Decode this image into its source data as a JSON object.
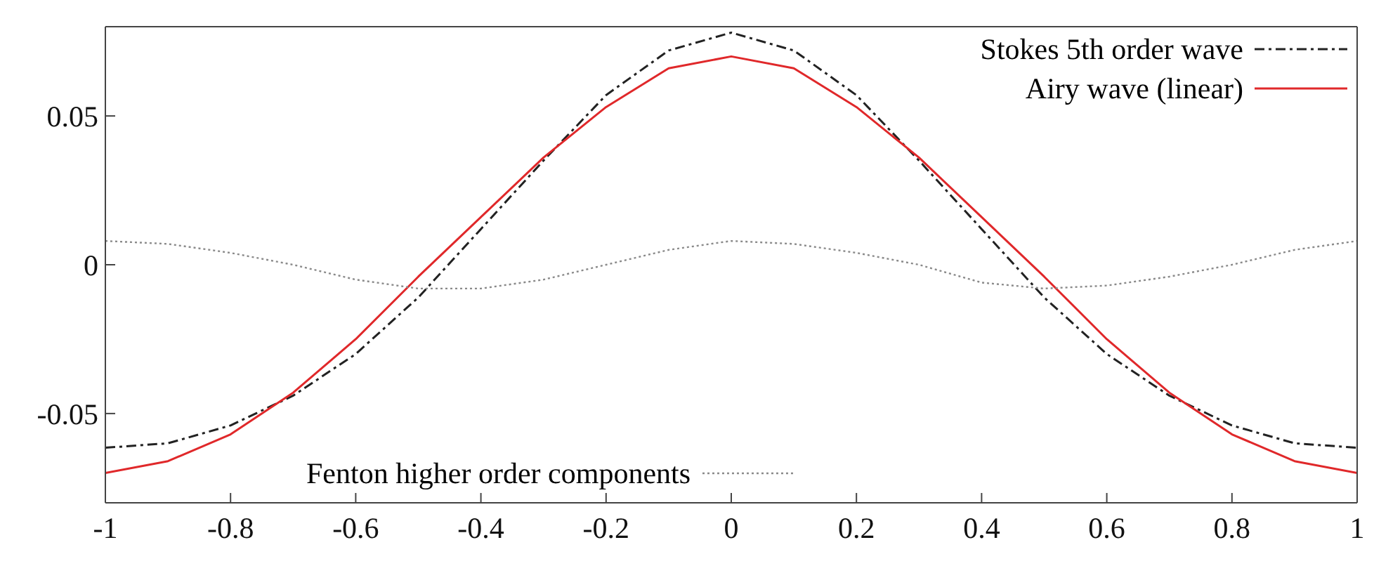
{
  "chart_data": {
    "type": "line",
    "x": [
      -1,
      -0.9,
      -0.8,
      -0.7,
      -0.6,
      -0.5,
      -0.4,
      -0.3,
      -0.2,
      -0.1,
      0,
      0.1,
      0.2,
      0.3,
      0.4,
      0.5,
      0.6,
      0.7,
      0.8,
      0.9,
      1
    ],
    "series": [
      {
        "name": "Stokes 5th order wave",
        "color": "#222222",
        "line_style": "dashdot",
        "values": [
          -0.0615,
          -0.06,
          -0.054,
          -0.044,
          -0.03,
          -0.011,
          0.012,
          0.035,
          0.057,
          0.072,
          0.078,
          0.072,
          0.057,
          0.035,
          0.012,
          -0.011,
          -0.03,
          -0.044,
          -0.054,
          -0.06,
          -0.0615
        ]
      },
      {
        "name": "Airy wave (linear)",
        "color": "#e0282a",
        "line_style": "solid",
        "values": [
          -0.07,
          -0.066,
          -0.057,
          -0.043,
          -0.025,
          -0.004,
          0.016,
          0.036,
          0.053,
          0.066,
          0.07,
          0.066,
          0.053,
          0.036,
          0.016,
          -0.004,
          -0.025,
          -0.043,
          -0.057,
          -0.066,
          -0.07
        ]
      },
      {
        "name": "Fenton higher order components",
        "color": "#8a8a8a",
        "line_style": "dotted",
        "values": [
          0.008,
          0.007,
          0.004,
          0,
          -0.005,
          -0.008,
          -0.008,
          -0.005,
          0,
          0.005,
          0.008,
          0.007,
          0.004,
          0,
          -0.006,
          -0.008,
          -0.007,
          -0.004,
          0,
          0.005,
          0.008
        ]
      }
    ],
    "xlim": [
      -1,
      1
    ],
    "xticks": [
      -1,
      -0.8,
      -0.6,
      -0.4,
      -0.2,
      0,
      0.2,
      0.4,
      0.6,
      0.8,
      1
    ],
    "ylim": [
      -0.08,
      0.08
    ],
    "yticks": [
      -0.05,
      0,
      0.05
    ],
    "grid": false,
    "legend": "top right",
    "marker": "none"
  }
}
